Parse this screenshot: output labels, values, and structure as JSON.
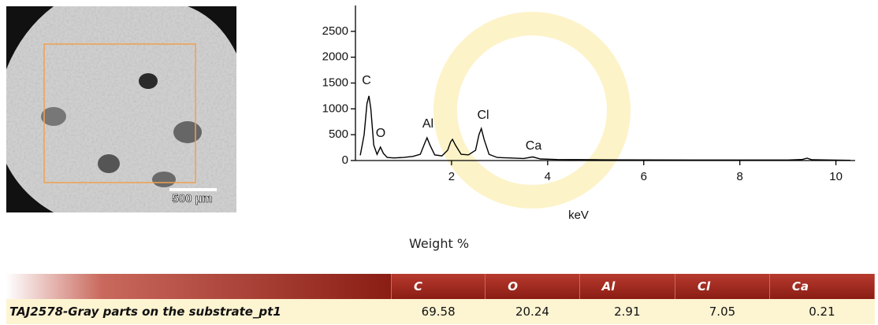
{
  "chart_data": {
    "type": "line",
    "x_label": "keV",
    "color": "#000000",
    "x": [
      0.1,
      0.18,
      0.24,
      0.28,
      0.32,
      0.38,
      0.45,
      0.52,
      0.58,
      0.66,
      0.8,
      1.0,
      1.2,
      1.35,
      1.44,
      1.49,
      1.55,
      1.65,
      1.8,
      1.92,
      1.98,
      2.02,
      2.08,
      2.2,
      2.35,
      2.5,
      2.57,
      2.62,
      2.68,
      2.78,
      2.95,
      3.2,
      3.5,
      3.69,
      3.85,
      4.2,
      5,
      6,
      7,
      8,
      9,
      9.3,
      9.4,
      9.5,
      10,
      10.3
    ],
    "values": [
      100,
      500,
      1100,
      1250,
      1000,
      300,
      120,
      260,
      140,
      60,
      50,
      60,
      80,
      120,
      330,
      440,
      300,
      110,
      90,
      200,
      360,
      410,
      300,
      120,
      110,
      200,
      500,
      620,
      400,
      120,
      60,
      50,
      40,
      70,
      30,
      20,
      15,
      12,
      10,
      10,
      10,
      20,
      45,
      15,
      8,
      5
    ],
    "xlim": [
      0,
      10.4
    ],
    "xticks": [
      2,
      4,
      6,
      8,
      10
    ],
    "ylim": [
      0,
      3000
    ],
    "yticks": [
      0,
      500,
      1000,
      1500,
      2000,
      2500
    ],
    "annotations": [
      "C",
      "O",
      "Al",
      "Cl",
      "Ca"
    ]
  },
  "image": {
    "scale_bar": "500 µm"
  },
  "caption": "Weight %",
  "table": {
    "columns": [
      "C",
      "O",
      "Al",
      "Cl",
      "Ca"
    ],
    "rows": [
      {
        "label": "TAJ2578-Gray parts on the substrate_pt1",
        "values": [
          69.58,
          20.24,
          2.91,
          7.05,
          0.21
        ]
      }
    ]
  }
}
